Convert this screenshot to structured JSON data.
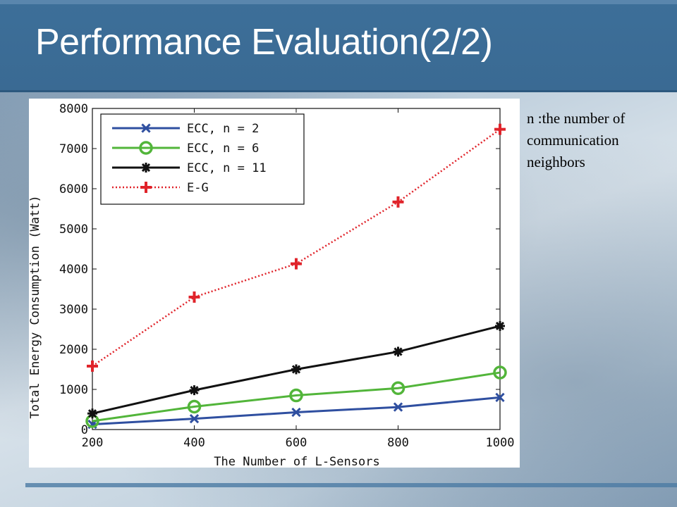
{
  "slide": {
    "title": "Performance Evaluation(2/2)",
    "note": "n :the number of communication neighbors"
  },
  "colors": {
    "header": "#3a6a93",
    "ecc2": "#2f4fa0",
    "ecc6": "#52b53a",
    "ecc11": "#111111",
    "eg": "#e0232a"
  },
  "chart_data": {
    "type": "line",
    "title": "",
    "xlabel": "The Number of L-Sensors",
    "ylabel": "Total Energy Consumption (Watt)",
    "x": [
      200,
      400,
      600,
      800,
      1000
    ],
    "xlim": [
      200,
      1000
    ],
    "ylim": [
      0,
      8000
    ],
    "xticks": [
      200,
      400,
      600,
      800,
      1000
    ],
    "yticks": [
      0,
      1000,
      2000,
      3000,
      4000,
      5000,
      6000,
      7000,
      8000
    ],
    "legend_position": "top-left",
    "grid": false,
    "series": [
      {
        "name": "ECC, n = 2",
        "values": [
          130,
          270,
          430,
          560,
          800
        ],
        "marker": "x",
        "style": "solid",
        "color": "#2f4fa0"
      },
      {
        "name": "ECC, n = 6",
        "values": [
          210,
          570,
          850,
          1030,
          1420
        ],
        "marker": "o",
        "style": "solid",
        "color": "#52b53a"
      },
      {
        "name": "ECC, n = 11",
        "values": [
          400,
          980,
          1500,
          1940,
          2580
        ],
        "marker": "*",
        "style": "solid",
        "color": "#111111"
      },
      {
        "name": "E-G",
        "values": [
          1580,
          3300,
          4130,
          5670,
          7480
        ],
        "marker": "+",
        "style": "dotted",
        "color": "#e0232a"
      }
    ]
  }
}
